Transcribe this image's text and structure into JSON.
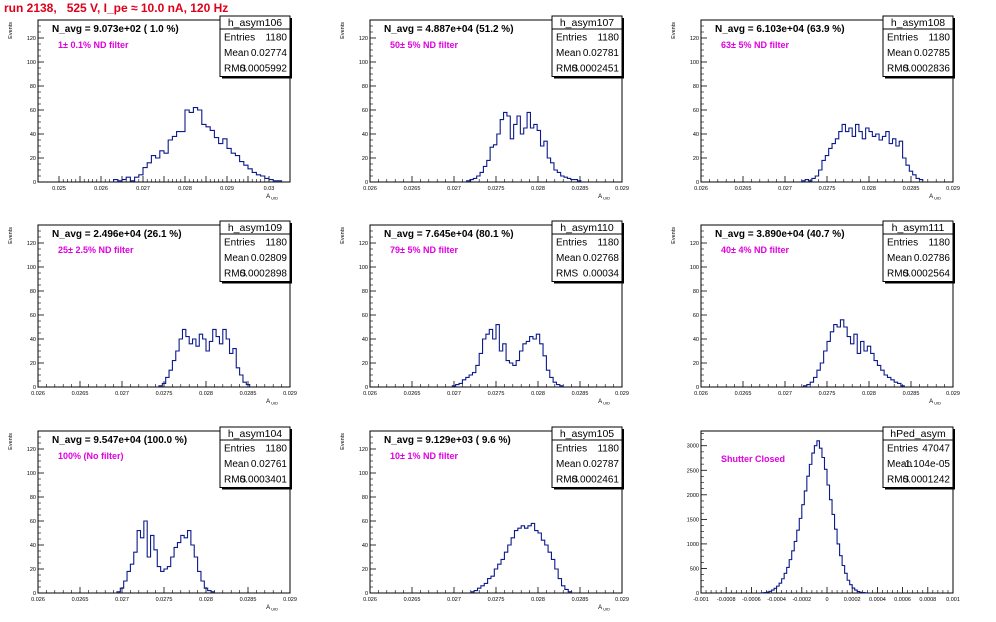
{
  "run_title": "run 2138,   525 V, I_pe ≈ 10.0 nA, 120 Hz",
  "colors": {
    "title": "#e0001a",
    "annotation": "#e000e0",
    "histogram": "#0b1a8c",
    "axis": "#000000"
  },
  "chart_data": [
    {
      "type": "histogram",
      "name": "h_asym106",
      "stats": [
        [
          "Entries",
          "1180"
        ],
        [
          "Mean",
          "0.02774"
        ],
        [
          "RMS",
          "0.0005992"
        ]
      ],
      "navg_label": "N_avg = 9.073e+02 ( 1.0 %)",
      "filter_label": "1± 0.1% ND filter",
      "ylabel": "Events",
      "xlabel": "A_UID",
      "xlim": [
        0.0245,
        0.0305
      ],
      "ylim": [
        0,
        135
      ],
      "xticks": [
        0.025,
        0.0255,
        0.026,
        0.0265,
        0.027,
        0.0275,
        0.028,
        0.0285,
        0.029,
        0.0295,
        0.03
      ],
      "xtick_labels": [
        "0.025",
        "",
        "0.026",
        "",
        "0.027",
        "",
        "0.028",
        "",
        "0.029",
        "",
        "0.03"
      ],
      "yticks": [
        0,
        20,
        40,
        60,
        80,
        100,
        120
      ],
      "bin_start": 0.0263,
      "bin_width": 0.0001,
      "counts": [
        2,
        1,
        2,
        4,
        1,
        4,
        6,
        12,
        16,
        22,
        20,
        26,
        24,
        35,
        38,
        42,
        42,
        60,
        58,
        62,
        60,
        48,
        46,
        43,
        37,
        32,
        36,
        28,
        24,
        22,
        17,
        14,
        11,
        8,
        6,
        5,
        3,
        2,
        1,
        1
      ]
    },
    {
      "type": "histogram",
      "name": "h_asym107",
      "stats": [
        [
          "Entries",
          "1180"
        ],
        [
          "Mean",
          "0.02781"
        ],
        [
          "RMS",
          "0.0002451"
        ]
      ],
      "navg_label": "N_avg = 4.887e+04 (51.2 %)",
      "filter_label": "50± 5% ND filter",
      "ylabel": "Events",
      "xlabel": "A_UID",
      "xlim": [
        0.026,
        0.029
      ],
      "ylim": [
        0,
        135
      ],
      "xticks": [
        0.026,
        0.0265,
        0.027,
        0.0275,
        0.028,
        0.0285,
        0.029
      ],
      "xtick_labels": [
        "0.026",
        "0.0265",
        "0.027",
        "0.0275",
        "0.028",
        "0.0285",
        "0.029"
      ],
      "yticks": [
        0,
        20,
        40,
        60,
        80,
        100,
        120
      ],
      "bin_start": 0.02715,
      "bin_width": 4e-05,
      "counts": [
        1,
        2,
        3,
        5,
        8,
        13,
        18,
        29,
        31,
        40,
        52,
        58,
        55,
        36,
        48,
        55,
        40,
        45,
        58,
        45,
        48,
        43,
        30,
        34,
        20,
        16,
        10,
        8,
        5,
        4,
        3,
        2,
        2,
        1
      ]
    },
    {
      "type": "histogram",
      "name": "h_asym108",
      "stats": [
        [
          "Entries",
          "1180"
        ],
        [
          "Mean",
          "0.02785"
        ],
        [
          "RMS",
          "0.0002836"
        ]
      ],
      "navg_label": "N_avg = 6.103e+04 (63.9 %)",
      "filter_label": "63± 5% ND filter",
      "ylabel": "Events",
      "xlabel": "A_UID",
      "xlim": [
        0.026,
        0.029
      ],
      "ylim": [
        0,
        135
      ],
      "xticks": [
        0.026,
        0.0265,
        0.027,
        0.0275,
        0.028,
        0.0285,
        0.029
      ],
      "xtick_labels": [
        "0.026",
        "0.0265",
        "0.027",
        "0.0275",
        "0.028",
        "0.0285",
        "0.029"
      ],
      "yticks": [
        0,
        20,
        40,
        60,
        80,
        100,
        120
      ],
      "bin_start": 0.0272,
      "bin_width": 4e-05,
      "counts": [
        1,
        2,
        1,
        3,
        5,
        10,
        18,
        22,
        28,
        32,
        36,
        42,
        48,
        42,
        45,
        38,
        48,
        42,
        36,
        45,
        42,
        38,
        40,
        35,
        38,
        42,
        32,
        36,
        30,
        34,
        20,
        14,
        9,
        6,
        3,
        2
      ]
    },
    {
      "type": "histogram",
      "name": "h_asym109",
      "stats": [
        [
          "Entries",
          "1180"
        ],
        [
          "Mean",
          "0.02809"
        ],
        [
          "RMS",
          "0.0002898"
        ]
      ],
      "navg_label": "N_avg = 2.496e+04 (26.1 %)",
      "filter_label": "25± 2.5% ND filter",
      "ylabel": "Events",
      "xlabel": "A_UID",
      "xlim": [
        0.026,
        0.029
      ],
      "ylim": [
        0,
        135
      ],
      "xticks": [
        0.026,
        0.0265,
        0.027,
        0.0275,
        0.028,
        0.0285,
        0.029
      ],
      "xtick_labels": [
        "0.026",
        "0.0265",
        "0.027",
        "0.0275",
        "0.028",
        "0.0285",
        "0.029"
      ],
      "yticks": [
        0,
        20,
        40,
        60,
        80,
        100,
        120
      ],
      "bin_start": 0.02744,
      "bin_width": 4e-05,
      "counts": [
        1,
        3,
        8,
        14,
        22,
        30,
        40,
        48,
        42,
        36,
        40,
        34,
        44,
        40,
        30,
        38,
        48,
        42,
        36,
        48,
        40,
        28,
        32,
        16,
        10,
        4,
        2
      ]
    },
    {
      "type": "histogram",
      "name": "h_asym110",
      "stats": [
        [
          "Entries",
          "1180"
        ],
        [
          "Mean",
          "0.02768"
        ],
        [
          "RMS",
          "0.00034"
        ]
      ],
      "navg_label": "N_avg = 7.645e+04 (80.1 %)",
      "filter_label": "79± 5% ND filter",
      "ylabel": "Events",
      "xlabel": "A_UID",
      "xlim": [
        0.026,
        0.029
      ],
      "ylim": [
        0,
        135
      ],
      "xticks": [
        0.026,
        0.0265,
        0.027,
        0.0275,
        0.028,
        0.0285,
        0.029
      ],
      "xtick_labels": [
        "0.026",
        "0.0265",
        "0.027",
        "0.0275",
        "0.028",
        "0.0285",
        "0.029"
      ],
      "yticks": [
        0,
        20,
        40,
        60,
        80,
        100,
        120
      ],
      "bin_start": 0.02698,
      "bin_width": 4e-05,
      "counts": [
        1,
        2,
        3,
        6,
        8,
        10,
        12,
        18,
        28,
        40,
        44,
        48,
        40,
        52,
        30,
        36,
        22,
        20,
        18,
        22,
        30,
        36,
        38,
        42,
        40,
        44,
        36,
        26,
        14,
        8,
        4,
        2,
        1
      ]
    },
    {
      "type": "histogram",
      "name": "h_asym111",
      "stats": [
        [
          "Entries",
          "1180"
        ],
        [
          "Mean",
          "0.02786"
        ],
        [
          "RMS",
          "0.0002564"
        ]
      ],
      "navg_label": "N_avg = 3.890e+04 (40.7 %)",
      "filter_label": "40± 4% ND filter",
      "ylabel": "Events",
      "xlabel": "A_UID",
      "xlim": [
        0.026,
        0.029
      ],
      "ylim": [
        0,
        135
      ],
      "xticks": [
        0.026,
        0.0265,
        0.027,
        0.0275,
        0.028,
        0.0285,
        0.029
      ],
      "xtick_labels": [
        "0.026",
        "0.0265",
        "0.027",
        "0.0275",
        "0.028",
        "0.0285",
        "0.029"
      ],
      "yticks": [
        0,
        20,
        40,
        60,
        80,
        100,
        120
      ],
      "bin_start": 0.02722,
      "bin_width": 4e-05,
      "counts": [
        1,
        2,
        4,
        8,
        14,
        20,
        30,
        38,
        46,
        52,
        50,
        56,
        50,
        42,
        36,
        44,
        28,
        38,
        30,
        34,
        28,
        22,
        18,
        14,
        10,
        8,
        6,
        4,
        3,
        1
      ]
    },
    {
      "type": "histogram",
      "name": "h_asym104",
      "stats": [
        [
          "Entries",
          "1180"
        ],
        [
          "Mean",
          "0.02761"
        ],
        [
          "RMS",
          "0.0003401"
        ]
      ],
      "navg_label": "N_avg = 9.547e+04 (100.0 %)",
      "filter_label": "100% (No filter)",
      "ylabel": "Events",
      "xlabel": "A_UID",
      "xlim": [
        0.026,
        0.029
      ],
      "ylim": [
        0,
        135
      ],
      "xticks": [
        0.026,
        0.0265,
        0.027,
        0.0275,
        0.028,
        0.0285,
        0.029
      ],
      "xtick_labels": [
        "0.026",
        "0.0265",
        "0.027",
        "0.0275",
        "0.028",
        "0.0285",
        "0.029"
      ],
      "yticks": [
        0,
        20,
        40,
        60,
        80,
        100,
        120
      ],
      "bin_start": 0.02694,
      "bin_width": 4e-05,
      "counts": [
        1,
        4,
        10,
        18,
        24,
        34,
        52,
        46,
        60,
        30,
        48,
        36,
        22,
        18,
        20,
        22,
        30,
        38,
        42,
        48,
        46,
        52,
        40,
        30,
        18,
        10,
        4,
        2,
        1
      ]
    },
    {
      "type": "histogram",
      "name": "h_asym105",
      "stats": [
        [
          "Entries",
          "1180"
        ],
        [
          "Mean",
          "0.02787"
        ],
        [
          "RMS",
          "0.0002461"
        ]
      ],
      "navg_label": "N_avg = 9.129e+03 ( 9.6 %)",
      "filter_label": "10± 1% ND filter",
      "ylabel": "Events",
      "xlabel": "A_UID",
      "xlim": [
        0.026,
        0.029
      ],
      "ylim": [
        0,
        135
      ],
      "xticks": [
        0.026,
        0.0265,
        0.027,
        0.0275,
        0.028,
        0.0285,
        0.029
      ],
      "xtick_labels": [
        "0.026",
        "0.0265",
        "0.027",
        "0.0275",
        "0.028",
        "0.0285",
        "0.029"
      ],
      "yticks": [
        0,
        20,
        40,
        60,
        80,
        100,
        120
      ],
      "bin_start": 0.0272,
      "bin_width": 4e-05,
      "counts": [
        1,
        2,
        4,
        6,
        8,
        12,
        14,
        20,
        24,
        28,
        34,
        40,
        46,
        52,
        54,
        56,
        54,
        56,
        58,
        52,
        50,
        44,
        40,
        34,
        28,
        20,
        12,
        6,
        3,
        1
      ]
    },
    {
      "type": "histogram",
      "name": "hPed_asym",
      "stats": [
        [
          "Entries",
          "47047"
        ],
        [
          "Mean",
          "-1.104e-05"
        ],
        [
          "RMS",
          "0.0001242"
        ]
      ],
      "navg_label": "",
      "filter_label": "Shutter Closed",
      "ylabel": "",
      "xlabel": "",
      "xlim": [
        -0.001,
        0.001
      ],
      "ylim": [
        0,
        3300
      ],
      "xticks": [
        -0.001,
        -0.0008,
        -0.0006,
        -0.0004,
        -0.0002,
        0,
        0.0002,
        0.0004,
        0.0006,
        0.0008,
        0.001
      ],
      "xtick_labels": [
        "-0.001",
        "-0.0008",
        "-0.0006",
        "-0.0004",
        "-0.0002",
        "0",
        "0.0002",
        "0.0004",
        "0.0006",
        "0.0008",
        "0.001"
      ],
      "yticks": [
        0,
        500,
        1000,
        1500,
        2000,
        2500,
        3000
      ],
      "bin_start": -0.00052,
      "bin_width": 2e-05,
      "counts": [
        5,
        10,
        20,
        35,
        60,
        95,
        140,
        200,
        290,
        400,
        520,
        680,
        860,
        1050,
        1280,
        1520,
        1800,
        2080,
        2380,
        2620,
        2850,
        3000,
        3100,
        2950,
        2760,
        2520,
        2200,
        1900,
        1600,
        1300,
        1000,
        760,
        560,
        400,
        260,
        170,
        100,
        60,
        30,
        15,
        8,
        4
      ]
    }
  ]
}
